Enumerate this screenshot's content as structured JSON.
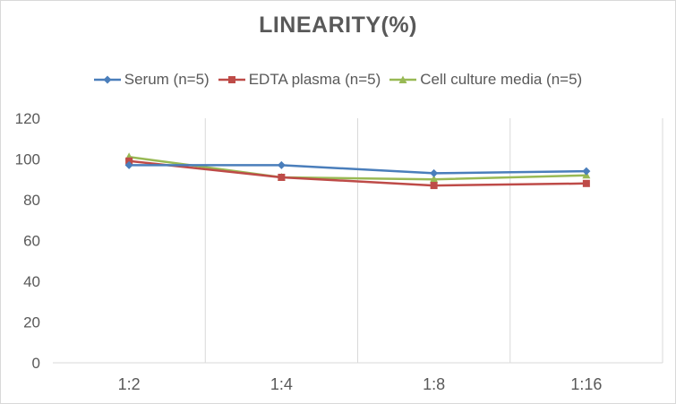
{
  "chart_data": {
    "type": "line",
    "title": "LINEARITY(%)",
    "categories": [
      "1:2",
      "1:4",
      "1:8",
      "1:16"
    ],
    "ylim": [
      0,
      120
    ],
    "yticks": [
      0,
      20,
      40,
      60,
      80,
      100,
      120
    ],
    "xlabel": "",
    "ylabel": "",
    "grid": "vertical category gridlines",
    "legend_position": "top",
    "series": [
      {
        "name": "Serum (n=5)",
        "color": "#4a7ebb",
        "marker": "diamond",
        "values": [
          97,
          97,
          93,
          94
        ]
      },
      {
        "name": "EDTA plasma (n=5)",
        "color": "#be4b48",
        "marker": "square",
        "values": [
          99,
          91,
          87,
          88
        ]
      },
      {
        "name": "Cell culture media (n=5)",
        "color": "#98b954",
        "marker": "triangle",
        "values": [
          101,
          91,
          90,
          92
        ]
      }
    ]
  }
}
